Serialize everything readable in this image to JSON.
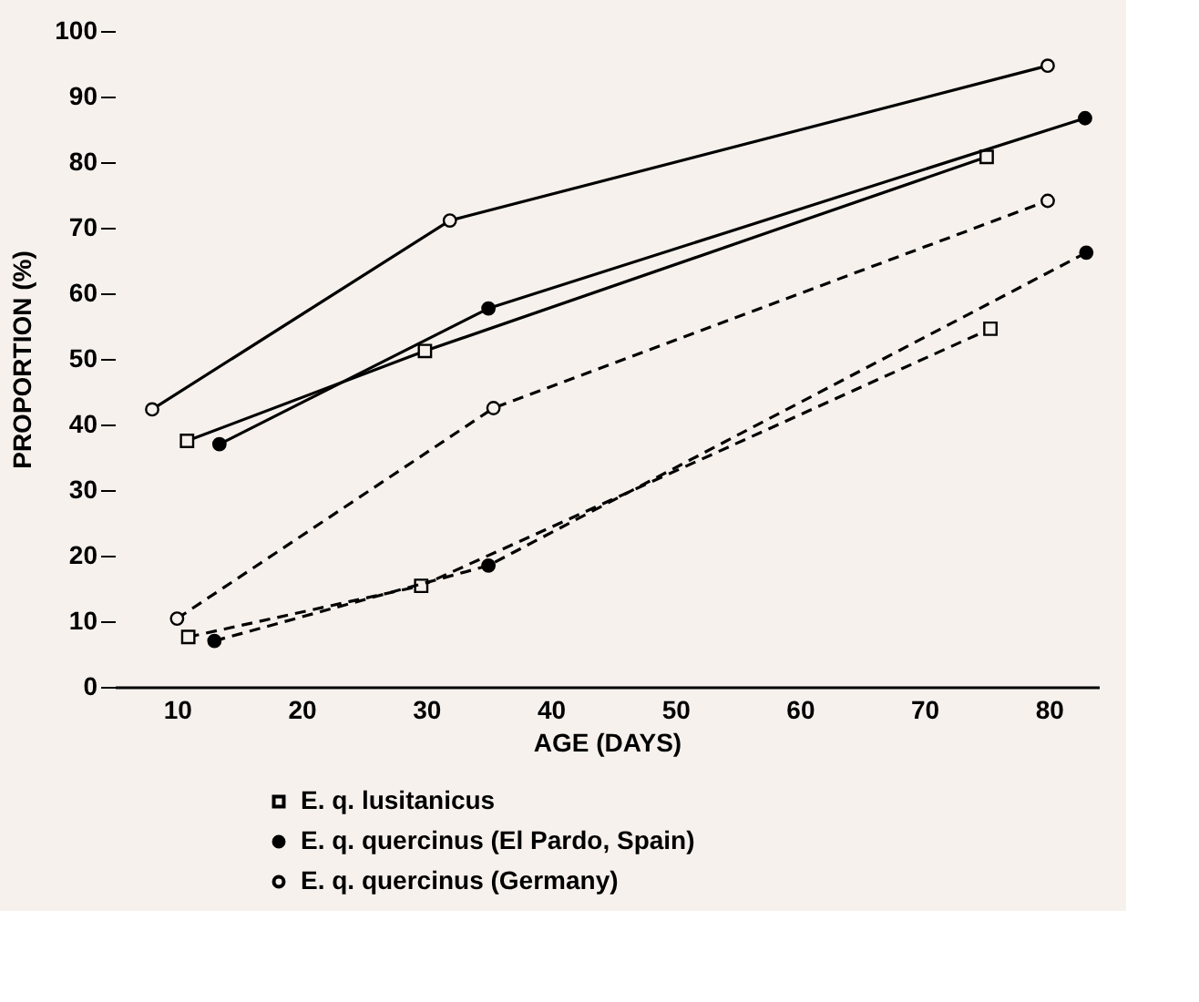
{
  "chart_data": {
    "type": "line",
    "xlabel": "AGE (DAYS)",
    "ylabel": "PROPORTION (%)",
    "xlim": [
      5,
      84
    ],
    "xticks": [
      10,
      20,
      30,
      40,
      50,
      60,
      70,
      80
    ],
    "ylim": [
      0,
      100
    ],
    "yticks": [
      0,
      10,
      20,
      30,
      40,
      50,
      60,
      70,
      80,
      90,
      100
    ],
    "grid": false,
    "legend": "bottom",
    "series": [
      {
        "name": "E. q. lusitanicus",
        "color": "#000000",
        "marker": "square",
        "line_style": "solid",
        "x": [
          10.8,
          29.9,
          75.0
        ],
        "values": [
          37.5,
          51.2,
          80.8
        ]
      },
      {
        "color": "#000000",
        "marker": "square",
        "line_style": "dashed",
        "x": [
          10.9,
          29.6,
          75.3
        ],
        "values": [
          7.6,
          15.4,
          54.6
        ]
      },
      {
        "name": "E. q. quercinus (El Pardo, Spain)",
        "color": "#000000",
        "marker": "circle",
        "line_style": "solid",
        "x": [
          13.4,
          35.0,
          82.9
        ],
        "values": [
          37.0,
          57.7,
          86.7
        ]
      },
      {
        "color": "#000000",
        "marker": "circle",
        "line_style": "dashed",
        "x": [
          13.0,
          35.0,
          83.0
        ],
        "values": [
          7.0,
          18.5,
          66.2
        ]
      },
      {
        "name": "E. q. quercinus (Germany)",
        "color": "#000000",
        "marker": "circle",
        "line_style": "solid",
        "x": [
          8.0,
          31.9,
          79.9
        ],
        "values": [
          42.3,
          71.1,
          94.7
        ]
      },
      {
        "color": "#000000",
        "marker": "circle",
        "line_style": "dashed",
        "x": [
          10.0,
          35.4,
          79.9
        ],
        "values": [
          10.4,
          42.5,
          74.1
        ]
      }
    ]
  }
}
